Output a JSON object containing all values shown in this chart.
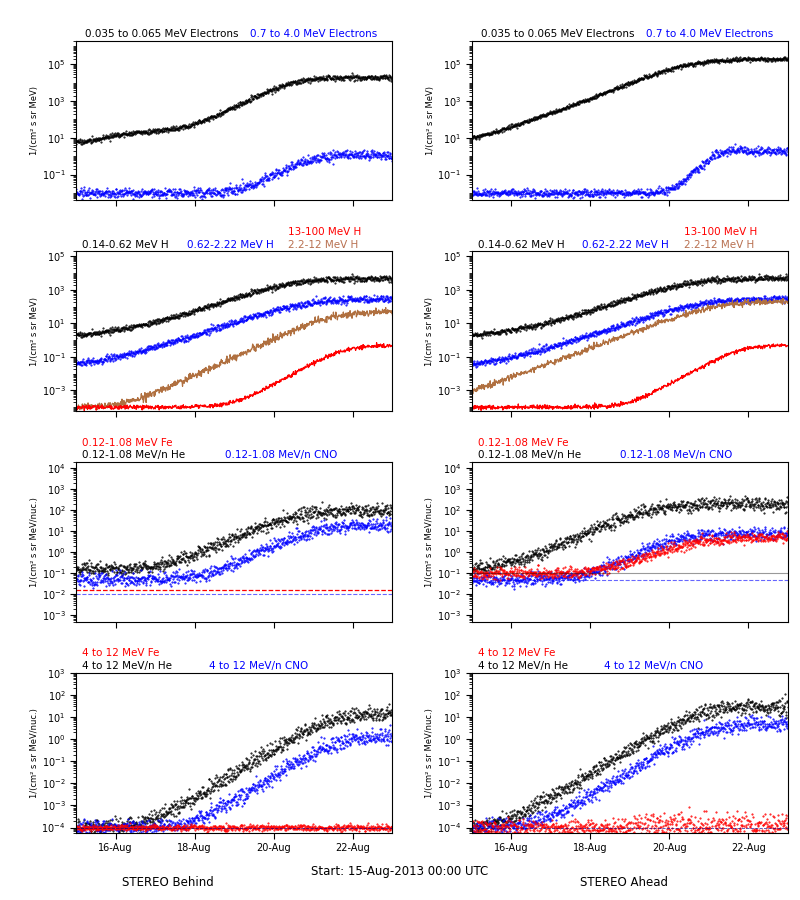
{
  "titles_row1": [
    {
      "text": "0.035 to 0.065 MeV Electrons",
      "color": "black"
    },
    {
      "text": "0.7 to 4.0 MeV Electrons",
      "color": "blue"
    }
  ],
  "titles_row2": [
    {
      "text": "0.14-0.62 MeV H",
      "color": "black"
    },
    {
      "text": "0.62-2.22 MeV H",
      "color": "blue"
    },
    {
      "text": "2.2-12 MeV H",
      "color": "#b87050"
    },
    {
      "text": "13-100 MeV H",
      "color": "red"
    }
  ],
  "titles_row3": [
    {
      "text": "0.12-1.08 MeV/n He",
      "color": "black"
    },
    {
      "text": "0.12-1.08 MeV/n CNO",
      "color": "blue"
    },
    {
      "text": "0.12-1.08 MeV Fe",
      "color": "red"
    }
  ],
  "titles_row4": [
    {
      "text": "4 to 12 MeV/n He",
      "color": "black"
    },
    {
      "text": "4 to 12 MeV/n CNO",
      "color": "blue"
    },
    {
      "text": "4 to 12 MeV Fe",
      "color": "red"
    }
  ],
  "xlabel_center": "Start: 15-Aug-2013 00:00 UTC",
  "xlabel_left": "STEREO Behind",
  "xlabel_right": "STEREO Ahead",
  "xtick_labels": [
    "16-Aug",
    "18-Aug",
    "20-Aug",
    "22-Aug"
  ],
  "ylabel_electrons": "1/(cm² s sr MeV)",
  "ylabel_ions": "1/(cm² s sr MeV/nuc.)",
  "row1_ylim": [
    0.004,
    2000000.0
  ],
  "row2_ylim": [
    6e-05,
    200000.0
  ],
  "row3_ylim": [
    0.0005,
    20000.0
  ],
  "row4_ylim": [
    6e-05,
    1000.0
  ],
  "background": "#ffffff",
  "seed": 17,
  "n": 800
}
